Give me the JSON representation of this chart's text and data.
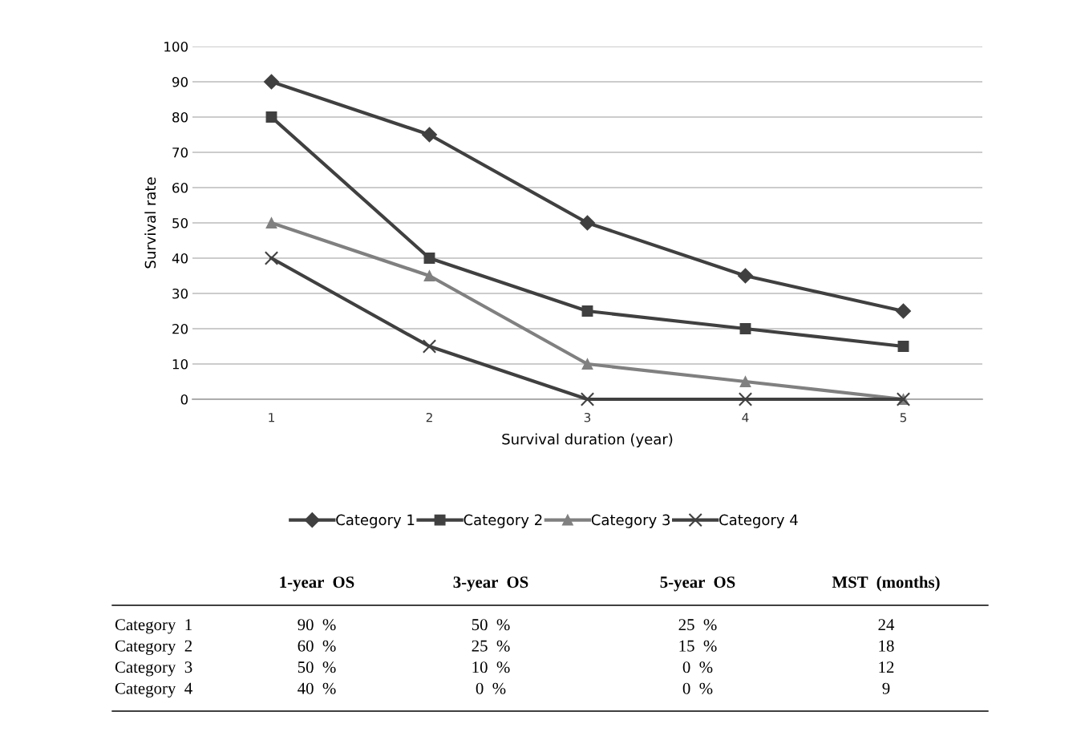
{
  "chart_data": [
    {
      "type": "line",
      "xlabel": "Survival duration (year)",
      "ylabel": "Survival rate",
      "categories": [
        "1",
        "2",
        "3",
        "4",
        "5"
      ],
      "ylim": [
        0,
        100
      ],
      "yticks": [
        0,
        10,
        20,
        30,
        40,
        50,
        60,
        70,
        80,
        90,
        100
      ],
      "grid": "y",
      "legend": "bottom",
      "line_style": "solid",
      "series": [
        {
          "name": "Category 1",
          "color": "#404040",
          "marker": "diamond",
          "values": [
            90,
            75,
            50,
            35,
            25
          ]
        },
        {
          "name": "Category 2",
          "color": "#404040",
          "marker": "square",
          "values": [
            80,
            40,
            25,
            20,
            15
          ]
        },
        {
          "name": "Category 3",
          "color": "#808080",
          "marker": "triangle",
          "values": [
            50,
            35,
            10,
            5,
            0
          ]
        },
        {
          "name": "Category 4",
          "color": "#404040",
          "marker": "cross",
          "values": [
            40,
            15,
            0,
            0,
            0
          ]
        }
      ]
    },
    {
      "type": "other",
      "categories": [
        "1-year  OS",
        "3-year  OS",
        "5-year  OS",
        "MST  (months)"
      ],
      "y_categories": [
        "Category  1",
        "Category  2",
        "Category  3",
        "Category  4"
      ],
      "cell_labels": [
        [
          "90  %",
          "50  %",
          "25  %",
          "24"
        ],
        [
          "60  %",
          "25  %",
          "15  %",
          "18"
        ],
        [
          "50  %",
          "10  %",
          "0  %",
          "12"
        ],
        [
          "40  %",
          "0  %",
          "0  %",
          "9"
        ]
      ]
    }
  ]
}
